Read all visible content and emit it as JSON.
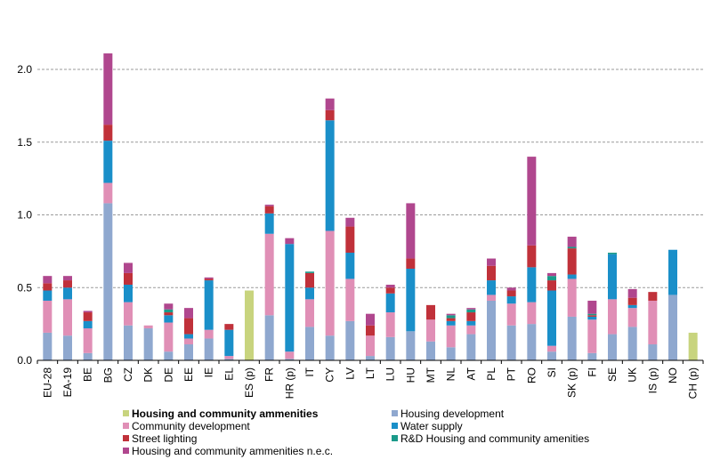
{
  "chart_data": {
    "type": "bar",
    "stacked": true,
    "categories": [
      "EU-28",
      "EA-19",
      "BE",
      "BG",
      "CZ",
      "DK",
      "DE",
      "EE",
      "IE",
      "EL",
      "ES (p)",
      "FR",
      "HR (p)",
      "IT",
      "CY",
      "LV",
      "LT",
      "LU",
      "HU",
      "MT",
      "NL",
      "AT",
      "PL",
      "PT",
      "RO",
      "SI",
      "SK (p)",
      "FI",
      "SE",
      "UK",
      "IS (p)",
      "NO",
      "CH (p)"
    ],
    "ylim": [
      0,
      2.0
    ],
    "yticks": [
      "0.0",
      "0.5",
      "1.0",
      "1.5",
      "2.0"
    ],
    "grid": true,
    "legend_position": "bottom",
    "series": [
      {
        "name": "Housing and community ammenities",
        "color": "#c8d47e",
        "values": [
          0,
          0,
          0,
          0,
          0,
          0,
          0,
          0,
          0,
          0,
          0.48,
          0,
          0,
          0,
          0,
          0,
          0,
          0,
          0,
          0,
          0,
          0,
          0,
          0,
          0,
          0,
          0,
          0,
          0,
          0,
          0,
          0,
          0.19
        ]
      },
      {
        "name": "Housing development",
        "color": "#8fa8cf",
        "values": [
          0.19,
          0.17,
          0.05,
          1.08,
          0.24,
          0.22,
          0.06,
          0.11,
          0.15,
          0.01,
          0,
          0.31,
          0.01,
          0.23,
          0.17,
          0.27,
          0.03,
          0.16,
          0.2,
          0.13,
          0.09,
          0.18,
          0.41,
          0.24,
          0.25,
          0.06,
          0.3,
          0.05,
          0.18,
          0.23,
          0.11,
          0.45,
          0
        ]
      },
      {
        "name": "Community development",
        "color": "#e08fb6",
        "values": [
          0.22,
          0.25,
          0.17,
          0.14,
          0.16,
          0.02,
          0.2,
          0.04,
          0.06,
          0.02,
          0,
          0.56,
          0.05,
          0.19,
          0.72,
          0.29,
          0.14,
          0.17,
          0.0,
          0.15,
          0.15,
          0.06,
          0.04,
          0.15,
          0.15,
          0.04,
          0.26,
          0.23,
          0.24,
          0.13,
          0.3,
          0,
          0
        ]
      },
      {
        "name": "Water supply",
        "color": "#1a8fc9",
        "values": [
          0.07,
          0.08,
          0.05,
          0.29,
          0.12,
          0.0,
          0.05,
          0.03,
          0.34,
          0.18,
          0,
          0.14,
          0.74,
          0.08,
          0.76,
          0.18,
          0.0,
          0.13,
          0.43,
          0.0,
          0.03,
          0.03,
          0.1,
          0.05,
          0.24,
          0.38,
          0.03,
          0.02,
          0.31,
          0.02,
          0.0,
          0.31,
          0
        ]
      },
      {
        "name": "Street lighting",
        "color": "#c0313a",
        "values": [
          0.05,
          0.05,
          0.06,
          0.11,
          0.08,
          0.0,
          0.02,
          0.11,
          0.01,
          0.04,
          0,
          0.05,
          0.0,
          0.1,
          0.07,
          0.18,
          0.07,
          0.04,
          0.07,
          0.1,
          0.02,
          0.06,
          0.1,
          0.04,
          0.15,
          0.07,
          0.18,
          0.01,
          0.0,
          0.05,
          0.06,
          0.0,
          0
        ]
      },
      {
        "name": "R&D Housing and community amenities",
        "color": "#1a9a8a",
        "values": [
          0,
          0,
          0,
          0,
          0,
          0,
          0.02,
          0,
          0,
          0,
          0,
          0,
          0,
          0.01,
          0,
          0,
          0,
          0,
          0,
          0,
          0.02,
          0.02,
          0,
          0,
          0,
          0.03,
          0.01,
          0.01,
          0.01,
          0,
          0,
          0,
          0
        ]
      },
      {
        "name": "Housing and community ammenities n.e.c.",
        "color": "#b0478e",
        "values": [
          0.05,
          0.03,
          0.01,
          0.49,
          0.07,
          0.0,
          0.04,
          0.07,
          0.01,
          0.0,
          0,
          0.01,
          0.04,
          0.0,
          0.08,
          0.06,
          0.08,
          0.02,
          0.38,
          0.0,
          0.01,
          0.01,
          0.05,
          0.02,
          0.61,
          0.02,
          0.07,
          0.09,
          0.0,
          0.06,
          0.0,
          0.0,
          0
        ]
      }
    ]
  }
}
